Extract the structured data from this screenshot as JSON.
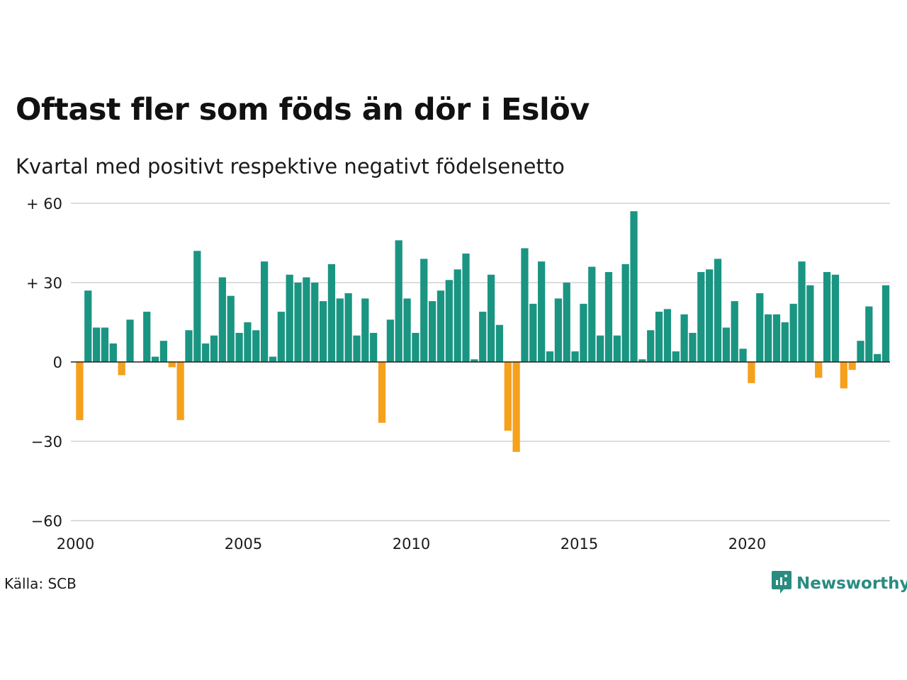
{
  "title": "Oftast fler som föds än dör i Eslöv",
  "subtitle": "Kvartal med positivt respektive negativt födelsenetto",
  "source": "Källa: SCB",
  "brand": "Newsworthy",
  "colors": {
    "positive": "#1a9582",
    "negative": "#f5a11c",
    "grid": "#dddddd",
    "brand": "#2a8c80"
  },
  "icons": {
    "logo": "newsworthy-chart-bubble-icon"
  },
  "chart_data": {
    "type": "bar",
    "ylim": [
      -60,
      60
    ],
    "yticks": [
      {
        "value": 60,
        "label": "+ 60"
      },
      {
        "value": 30,
        "label": "+ 30"
      },
      {
        "value": 0,
        "label": "0"
      },
      {
        "value": -30,
        "label": "−30"
      },
      {
        "value": -60,
        "label": "−60"
      }
    ],
    "xticks": [
      {
        "year": 2000,
        "label": "2000"
      },
      {
        "year": 2005,
        "label": "2005"
      },
      {
        "year": 2010,
        "label": "2010"
      },
      {
        "year": 2015,
        "label": "2015"
      },
      {
        "year": 2020,
        "label": "2020"
      }
    ],
    "start": "2000 Q1",
    "frequency": "quarter",
    "values": [
      -22,
      27,
      13,
      13,
      7,
      -5,
      16,
      0,
      19,
      2,
      8,
      -2,
      -22,
      12,
      42,
      7,
      10,
      32,
      25,
      11,
      15,
      12,
      38,
      2,
      19,
      33,
      30,
      32,
      30,
      23,
      37,
      24,
      26,
      10,
      24,
      11,
      -23,
      16,
      46,
      24,
      11,
      39,
      23,
      27,
      31,
      35,
      41,
      1,
      19,
      33,
      14,
      -26,
      -34,
      43,
      22,
      38,
      4,
      24,
      30,
      4,
      22,
      36,
      10,
      34,
      10,
      37,
      57,
      1,
      12,
      19,
      20,
      4,
      18,
      11,
      34,
      35,
      39,
      13,
      23,
      5,
      -8,
      26,
      18,
      18,
      15,
      22,
      38,
      29,
      -6,
      34,
      33,
      -10,
      -3,
      8,
      21,
      3,
      29
    ]
  }
}
